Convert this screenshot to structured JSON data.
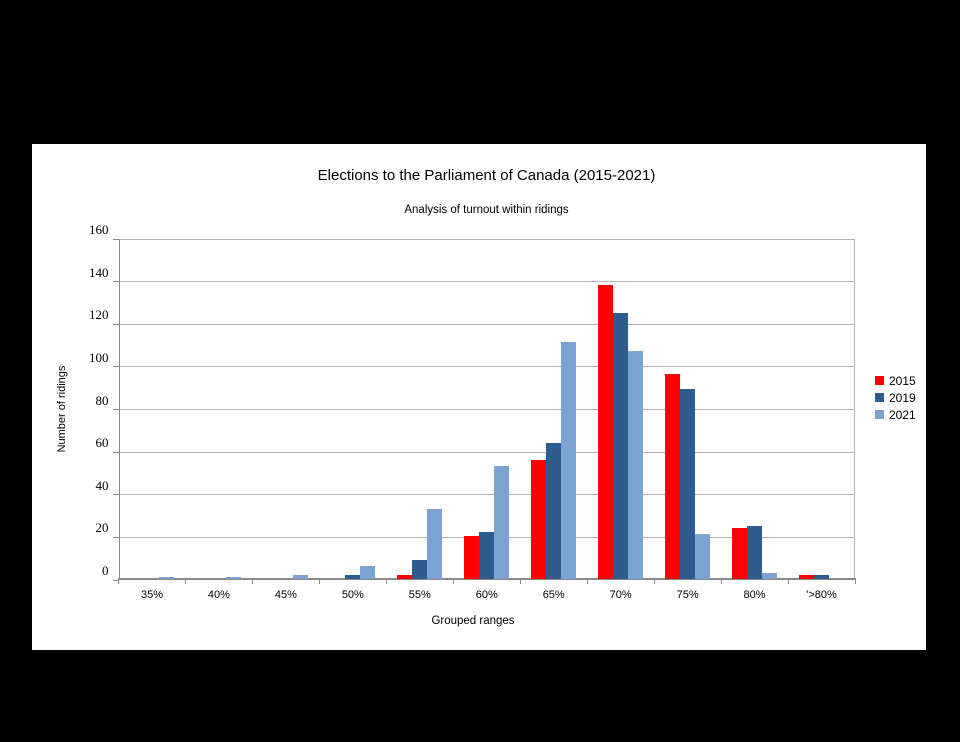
{
  "chart_data": {
    "type": "bar",
    "title": "Elections to the Parliament of Canada (2015-2021)",
    "subtitle": "Analysis of turnout within ridings",
    "xlabel": "Grouped ranges",
    "ylabel": "Number of ridings",
    "categories": [
      "35%",
      "40%",
      "45%",
      "50%",
      "55%",
      "60%",
      "65%",
      "70%",
      "75%",
      "80%",
      "'>80%"
    ],
    "series": [
      {
        "name": "2015",
        "color": "#ff0000",
        "values": [
          0,
          0,
          0,
          0,
          2,
          20,
          56,
          138,
          96,
          24,
          2
        ]
      },
      {
        "name": "2019",
        "color": "#2e5b90",
        "values": [
          0,
          0,
          0,
          2,
          9,
          22,
          64,
          125,
          89,
          25,
          2
        ]
      },
      {
        "name": "2021",
        "color": "#7aa3d2",
        "values": [
          1,
          1,
          2,
          6,
          33,
          53,
          111,
          107,
          21,
          3,
          0
        ]
      }
    ],
    "ylim": [
      0,
      160
    ],
    "ytick_step": 20,
    "grid": "horizontal",
    "legend_position": "right"
  },
  "colors": {
    "page_background": "#000000",
    "panel_background": "#ffffff",
    "gridline": "#b3b3b3",
    "axis": "#8a8a8a",
    "text": "#000000"
  }
}
